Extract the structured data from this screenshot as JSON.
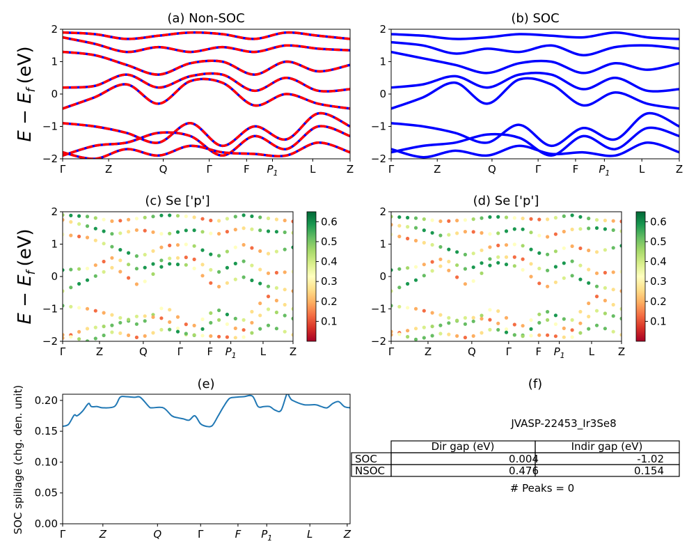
{
  "figure": {
    "ylabel_band": "E − E",
    "ylabel_band_sub": "f",
    "ylabel_band_unit": "(eV)",
    "ylabel_spillage": "SOC spillage (chg. den. unit)",
    "kpath": [
      "Γ",
      "Z",
      "Q",
      "Γ",
      "F",
      "P",
      "L",
      "Z"
    ],
    "kpath_p_sub": "1"
  },
  "chart_data": [
    {
      "id": "a",
      "type": "line",
      "title": "(a) Non-SOC",
      "ylim": [
        -2,
        2
      ],
      "yticks": [
        -2,
        -1,
        0,
        1,
        2
      ],
      "series_colors": [
        "#ff0000",
        "#0000ff"
      ],
      "style": "dashed",
      "bands": [
        [
          -0.45,
          -0.1,
          0.3,
          -0.3,
          0.4,
          0.35,
          -0.35,
          0.0,
          -0.3,
          -0.45
        ],
        [
          0.2,
          0.25,
          0.6,
          0.2,
          0.55,
          0.6,
          0.1,
          0.5,
          0.1,
          0.15
        ],
        [
          1.3,
          1.2,
          0.9,
          0.6,
          0.95,
          1.0,
          0.6,
          1.0,
          0.7,
          0.9
        ],
        [
          1.75,
          1.55,
          1.3,
          1.45,
          1.3,
          1.45,
          1.3,
          1.5,
          1.4,
          1.35
        ],
        [
          1.9,
          1.85,
          1.7,
          1.8,
          1.9,
          1.85,
          1.7,
          1.9,
          1.8,
          1.7
        ],
        [
          -0.9,
          -1.0,
          -1.2,
          -1.5,
          -0.9,
          -1.6,
          -1.0,
          -1.4,
          -0.6,
          -1.0
        ],
        [
          -1.9,
          -1.6,
          -1.5,
          -1.2,
          -1.3,
          -1.9,
          -1.3,
          -1.7,
          -1.0,
          -1.3
        ],
        [
          -1.8,
          -2.0,
          -1.7,
          -1.9,
          -1.6,
          -1.8,
          -1.85,
          -1.9,
          -1.5,
          -1.8
        ]
      ]
    },
    {
      "id": "b",
      "type": "line",
      "title": "(b) SOC",
      "ylim": [
        -2,
        2
      ],
      "yticks": [
        -2,
        -1,
        0,
        1,
        2
      ],
      "series_colors": [
        "#0000ff"
      ],
      "style": "solid",
      "bands": [
        [
          -0.45,
          -0.1,
          0.35,
          -0.3,
          0.45,
          0.3,
          -0.35,
          0.05,
          -0.3,
          -0.45
        ],
        [
          0.2,
          0.3,
          0.55,
          0.2,
          0.6,
          0.6,
          0.15,
          0.5,
          0.1,
          0.15
        ],
        [
          1.3,
          1.1,
          0.9,
          0.65,
          0.95,
          1.0,
          0.65,
          0.95,
          0.75,
          0.95
        ],
        [
          1.6,
          1.5,
          1.25,
          1.4,
          1.3,
          1.5,
          1.2,
          1.45,
          1.5,
          1.4
        ],
        [
          1.85,
          1.8,
          1.7,
          1.75,
          1.85,
          1.8,
          1.75,
          1.9,
          1.75,
          1.7
        ],
        [
          -0.9,
          -1.0,
          -1.2,
          -1.5,
          -0.95,
          -1.6,
          -1.05,
          -1.4,
          -0.6,
          -1.0
        ],
        [
          -1.8,
          -1.6,
          -1.5,
          -1.25,
          -1.35,
          -1.9,
          -1.3,
          -1.7,
          -1.05,
          -1.3
        ],
        [
          -1.7,
          -1.95,
          -1.75,
          -1.9,
          -1.6,
          -1.85,
          -1.8,
          -1.9,
          -1.5,
          -1.8
        ]
      ]
    },
    {
      "id": "c",
      "type": "scatter",
      "title": "(c)  Se ['p']",
      "ylim": [
        -2,
        2
      ],
      "yticks": [
        -2,
        -1,
        0,
        1,
        2
      ],
      "colorbar_ticks": [
        0.1,
        0.2,
        0.3,
        0.4,
        0.5,
        0.6
      ],
      "colorbar_range": [
        0.0,
        0.65
      ]
    },
    {
      "id": "d",
      "type": "scatter",
      "title": "(d) Se ['p']",
      "ylim": [
        -2,
        2
      ],
      "yticks": [
        -2,
        -1,
        0,
        1,
        2
      ],
      "colorbar_ticks": [
        0.1,
        0.2,
        0.3,
        0.4,
        0.5,
        0.6
      ],
      "colorbar_range": [
        0.0,
        0.65
      ]
    },
    {
      "id": "e",
      "type": "line",
      "title": "(e)",
      "ylim": [
        0.0,
        0.21
      ],
      "yticks": [
        "0.00",
        "0.05",
        "0.10",
        "0.15",
        "0.20"
      ],
      "series_colors": [
        "#1f77b4"
      ],
      "x": [
        0.0,
        0.02,
        0.04,
        0.05,
        0.07,
        0.09,
        0.1,
        0.12,
        0.14,
        0.18,
        0.2,
        0.22,
        0.25,
        0.27,
        0.3,
        0.31,
        0.35,
        0.38,
        0.4,
        0.42,
        0.44,
        0.46,
        0.48,
        0.5,
        0.52,
        0.54,
        0.56,
        0.58,
        0.6,
        0.63,
        0.66,
        0.68,
        0.7,
        0.72,
        0.74,
        0.76,
        0.78,
        0.79,
        0.8,
        0.84,
        0.88,
        0.9,
        0.92,
        0.94,
        0.96,
        0.98,
        1.0
      ],
      "values": [
        0.158,
        0.161,
        0.176,
        0.175,
        0.183,
        0.195,
        0.19,
        0.19,
        0.188,
        0.19,
        0.205,
        0.206,
        0.205,
        0.205,
        0.19,
        0.188,
        0.188,
        0.175,
        0.172,
        0.17,
        0.168,
        0.175,
        0.162,
        0.158,
        0.159,
        0.174,
        0.19,
        0.203,
        0.205,
        0.206,
        0.207,
        0.19,
        0.19,
        0.19,
        0.184,
        0.184,
        0.21,
        0.205,
        0.2,
        0.193,
        0.193,
        0.19,
        0.188,
        0.195,
        0.198,
        0.19,
        0.188
      ]
    }
  ],
  "panel_f": {
    "title": "(f)",
    "material": "JVASP-22453_Ir3Se8",
    "headers": [
      "",
      "Dir gap (eV)",
      "Indir gap (eV)"
    ],
    "rows": [
      [
        "SOC",
        "0.004",
        "-1.02"
      ],
      [
        "NSOC",
        "0.476",
        "0.154"
      ]
    ],
    "peaks": "# Peaks = 0"
  }
}
